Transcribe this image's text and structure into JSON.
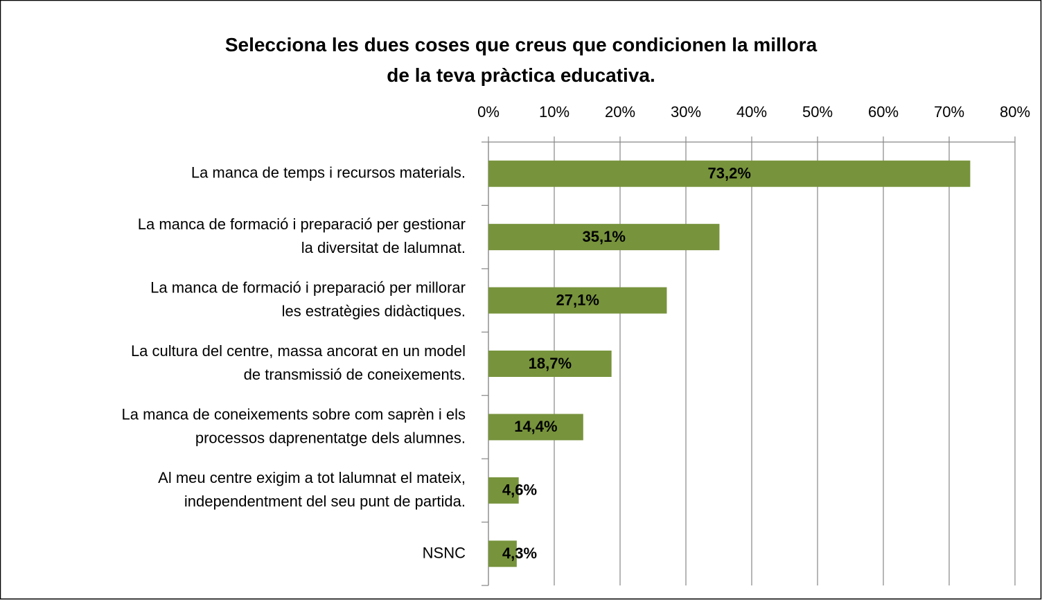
{
  "chart_data": {
    "type": "bar",
    "orientation": "horizontal",
    "title": "Selecciona les dues coses que creus que condicionen la millora\nde la teva pràctica educativa.",
    "categories": [
      "La manca de temps i recursos materials.",
      "La manca de formació i preparació per gestionar\nla diversitat de lalumnat.",
      "La manca de formació i preparació per millorar\nles estratègies didàctiques.",
      "La cultura del centre, massa ancorat en un model\nde transmissió de coneixements.",
      "La manca de coneixements sobre com saprèn i els\nprocessos daprenentatge dels alumnes.",
      "Al meu centre exigim a tot lalumnat el mateix,\nindependentment del seu punt de partida.",
      "NSNC"
    ],
    "values": [
      73.2,
      35.1,
      27.1,
      18.7,
      14.4,
      4.6,
      4.3
    ],
    "value_labels": [
      "73,2%",
      "35,1%",
      "27,1%",
      "18,7%",
      "14,4%",
      "4,6%",
      "4,3%"
    ],
    "color": "#77933c",
    "xlim": [
      0,
      80
    ],
    "xticks": [
      {
        "value": 0,
        "label": "0%"
      },
      {
        "value": 10,
        "label": "10%"
      },
      {
        "value": 20,
        "label": "20%"
      },
      {
        "value": 30,
        "label": "30%"
      },
      {
        "value": 40,
        "label": "40%"
      },
      {
        "value": 50,
        "label": "50%"
      },
      {
        "value": 60,
        "label": "60%"
      },
      {
        "value": 70,
        "label": "70%"
      },
      {
        "value": 80,
        "label": "80%"
      }
    ],
    "grid": true
  }
}
